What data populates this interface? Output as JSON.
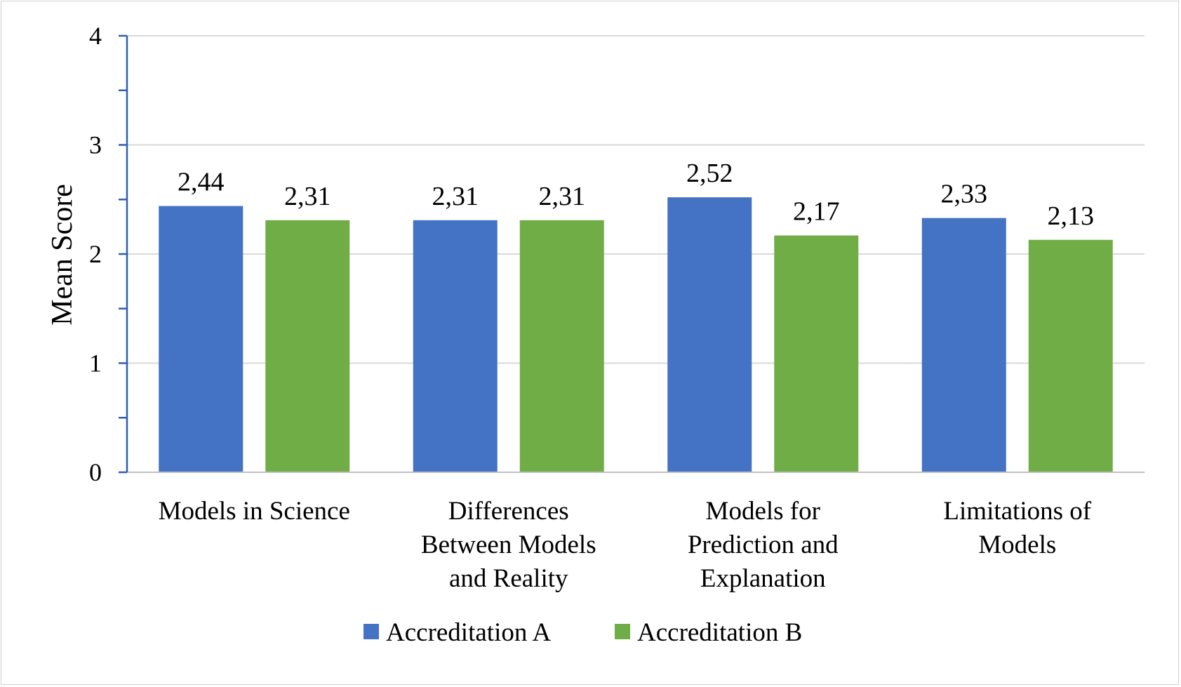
{
  "chart_data": {
    "type": "bar",
    "ylabel": "Mean Score",
    "ylim": [
      0,
      4
    ],
    "yticks": [
      0,
      1,
      2,
      3,
      4
    ],
    "grid": true,
    "legend_position": "bottom",
    "categories": [
      [
        "Models in Science"
      ],
      [
        "Differences",
        "Between Models",
        "and Reality"
      ],
      [
        "Models for",
        "Prediction and",
        "Explanation"
      ],
      [
        "Limitations of",
        "Models"
      ]
    ],
    "series": [
      {
        "name": "Accreditation A",
        "color": "#4472c4",
        "values": [
          2.44,
          2.31,
          2.52,
          2.33
        ],
        "labels": [
          "2,44",
          "2,31",
          "2,52",
          "2,33"
        ]
      },
      {
        "name": "Accreditation B",
        "color": "#70ad47",
        "values": [
          2.31,
          2.31,
          2.17,
          2.13
        ],
        "labels": [
          "2,31",
          "2,31",
          "2,17",
          "2,13"
        ]
      }
    ]
  }
}
